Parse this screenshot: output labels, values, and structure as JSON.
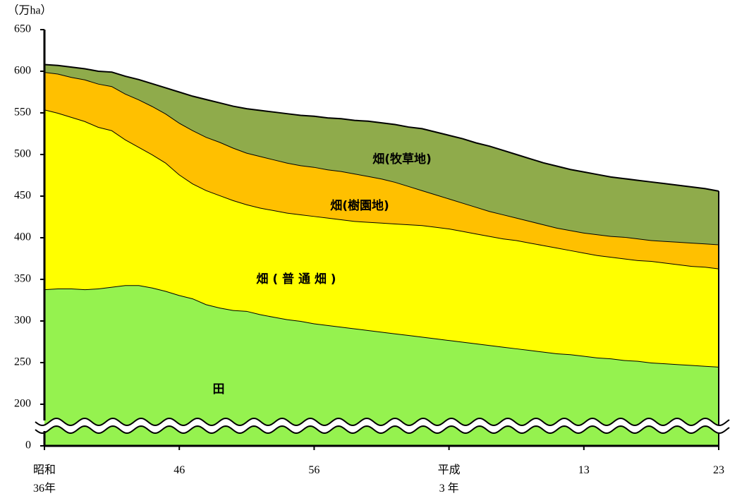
{
  "chart_data": {
    "type": "stacked-area",
    "y_label": "（万ha）",
    "categories": [
      "昭和\n36年",
      null,
      null,
      null,
      null,
      null,
      null,
      null,
      null,
      null,
      "46",
      null,
      null,
      null,
      null,
      null,
      null,
      null,
      null,
      null,
      "56",
      null,
      null,
      null,
      null,
      null,
      null,
      null,
      null,
      null,
      "平成\n3 年",
      null,
      null,
      null,
      null,
      null,
      null,
      null,
      null,
      null,
      "13",
      null,
      null,
      null,
      null,
      null,
      null,
      null,
      null,
      null,
      "23"
    ],
    "series": [
      {
        "name": "田",
        "color": "#95f24f",
        "values": [
          338,
          339,
          339,
          338,
          339,
          341,
          343,
          343,
          340,
          336,
          331,
          327,
          320,
          316,
          313,
          312,
          308,
          305,
          302,
          300,
          297,
          295,
          293,
          291,
          289,
          287,
          285,
          283,
          281,
          279,
          277,
          275,
          273,
          271,
          269,
          267,
          265,
          263,
          261,
          260,
          258,
          256,
          255,
          253,
          252,
          250,
          249,
          248,
          247,
          246,
          245
        ]
      },
      {
        "name": "畑 ( 普 通 畑 )",
        "color": "#ffff00",
        "values": [
          216,
          211,
          206,
          202,
          194,
          188,
          175,
          166,
          160,
          154,
          145,
          138,
          137,
          135,
          132,
          128,
          128,
          128,
          128,
          128,
          129,
          129,
          129,
          129,
          130,
          131,
          132,
          133,
          134,
          134,
          134,
          133,
          132,
          131,
          130,
          130,
          129,
          128,
          127,
          125,
          124,
          123,
          122,
          122,
          121,
          122,
          121,
          120,
          119,
          119,
          118
        ]
      },
      {
        "name": "畑(樹園地)",
        "color": "#ffc000",
        "values": [
          45,
          47,
          48,
          50,
          52,
          53,
          55,
          57,
          58,
          59,
          62,
          64,
          64,
          64,
          63,
          62,
          62,
          61,
          60,
          59,
          59,
          58,
          58,
          57,
          55,
          53,
          50,
          46,
          42,
          39,
          36,
          34,
          32,
          30,
          29,
          27,
          26,
          25,
          24,
          24,
          24,
          25,
          25,
          26,
          26,
          25,
          26,
          27,
          28,
          28,
          29
        ]
      },
      {
        "name": "畑(牧草地)",
        "color": "#8fab4b",
        "values": [
          9,
          10,
          12,
          13,
          15,
          17,
          21,
          24,
          27,
          31,
          37,
          41,
          45,
          47,
          50,
          53,
          55,
          57,
          59,
          60,
          61,
          62,
          63,
          64,
          66,
          67,
          69,
          71,
          74,
          75,
          76,
          77,
          77,
          78,
          77,
          76,
          75,
          74,
          74,
          73,
          73,
          72,
          71,
          70,
          70,
          70,
          69,
          68,
          67,
          66,
          64
        ]
      }
    ],
    "ylim": [
      0,
      650
    ],
    "yticks": [
      0,
      200,
      250,
      300,
      350,
      400,
      450,
      500,
      550,
      600,
      650
    ],
    "axis_break": [
      0,
      175
    ]
  }
}
